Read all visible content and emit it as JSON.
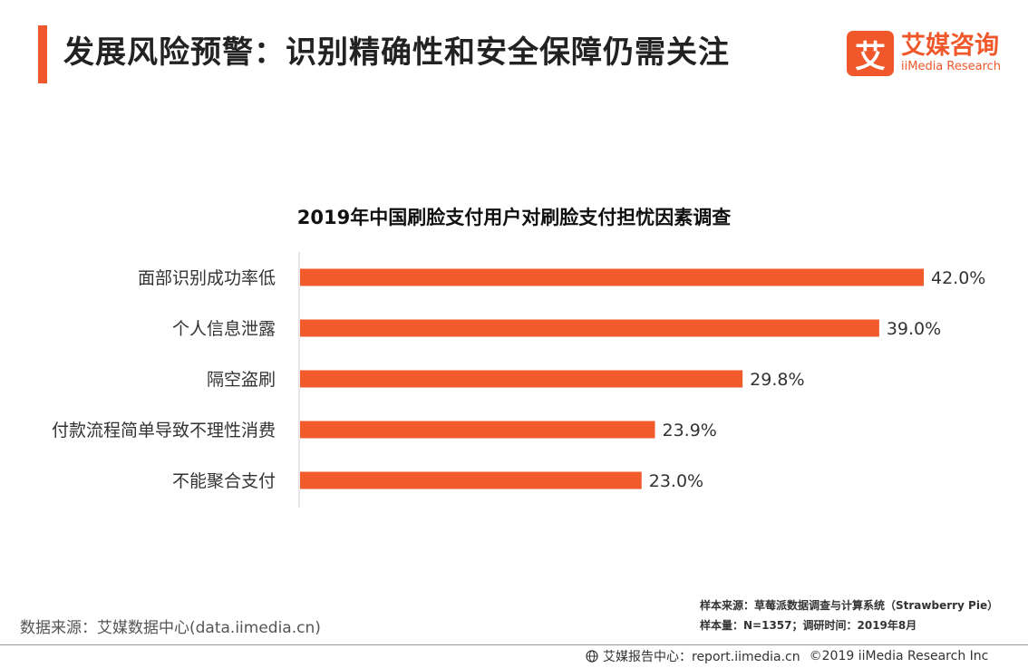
{
  "header": {
    "title": "发展风险预警：识别精确性和安全保障仍需关注"
  },
  "logo": {
    "mark_char": "艾",
    "name_cn": "艾媒咨询",
    "name_en": "iiMedia Research"
  },
  "colors": {
    "accent": "#f0582b",
    "bar": "#f15a2b",
    "axis": "#cccccc"
  },
  "chart_data": {
    "type": "bar",
    "orientation": "horizontal",
    "title": "2019年中国刷脸支付用户对刷脸支付担忧因素调查",
    "categories": [
      "面部识别成功率低",
      "个人信息泄露",
      "隔空盗刷",
      "付款流程简单导致不理性消费",
      "不能聚合支付"
    ],
    "values": [
      42.0,
      39.0,
      29.8,
      23.9,
      23.0
    ],
    "value_labels": [
      "42.0%",
      "39.0%",
      "29.8%",
      "23.9%",
      "23.0%"
    ],
    "unit": "%",
    "xlim": [
      0,
      42.0
    ],
    "grid": false,
    "legend": "none"
  },
  "footer": {
    "source": "数据来源：艾媒数据中心(data.iimedia.cn)",
    "sample_source": "样本来源：草莓派数据调查与计算系统（Strawberry Pie）",
    "sample_size": "样本量：N=1357；调研时间：2019年8月",
    "report_center": "艾媒报告中心：report.iimedia.cn",
    "copyright": "©2019  iiMedia Research Inc"
  }
}
